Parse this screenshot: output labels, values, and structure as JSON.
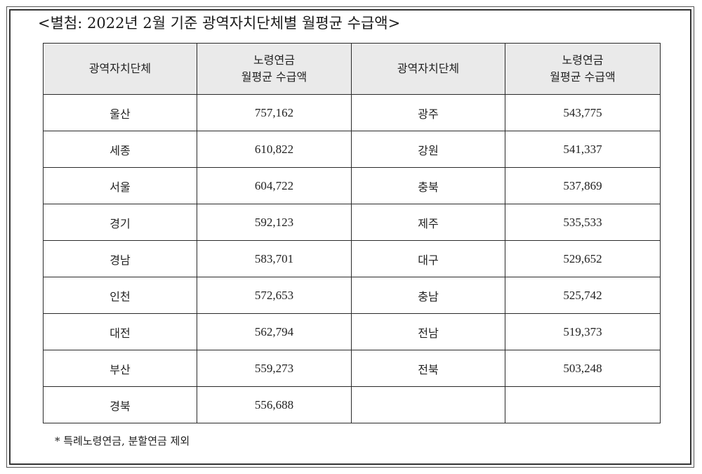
{
  "title": "<별첨: 2022년 2월 기준 광역자치단체별 월평균 수급액>",
  "table": {
    "headers": {
      "region_left": "광역자치단체",
      "amount_left_line1": "노령연금",
      "amount_left_line2": "월평균 수급액",
      "region_right": "광역자치단체",
      "amount_right_line1": "노령연금",
      "amount_right_line2": "월평균 수급액"
    },
    "rows": [
      {
        "r1": "울산",
        "a1": "757,162",
        "r2": "광주",
        "a2": "543,775"
      },
      {
        "r1": "세종",
        "a1": "610,822",
        "r2": "강원",
        "a2": "541,337"
      },
      {
        "r1": "서울",
        "a1": "604,722",
        "r2": "충북",
        "a2": "537,869"
      },
      {
        "r1": "경기",
        "a1": "592,123",
        "r2": "제주",
        "a2": "535,533"
      },
      {
        "r1": "경남",
        "a1": "583,701",
        "r2": "대구",
        "a2": "529,652"
      },
      {
        "r1": "인천",
        "a1": "572,653",
        "r2": "충남",
        "a2": "525,742"
      },
      {
        "r1": "대전",
        "a1": "562,794",
        "r2": "전남",
        "a2": "519,373"
      },
      {
        "r1": "부산",
        "a1": "559,273",
        "r2": "전북",
        "a2": "503,248"
      },
      {
        "r1": "경북",
        "a1": "556,688",
        "r2": "",
        "a2": ""
      }
    ]
  },
  "footnote": "* 특례노령연금, 분할연금 제외"
}
